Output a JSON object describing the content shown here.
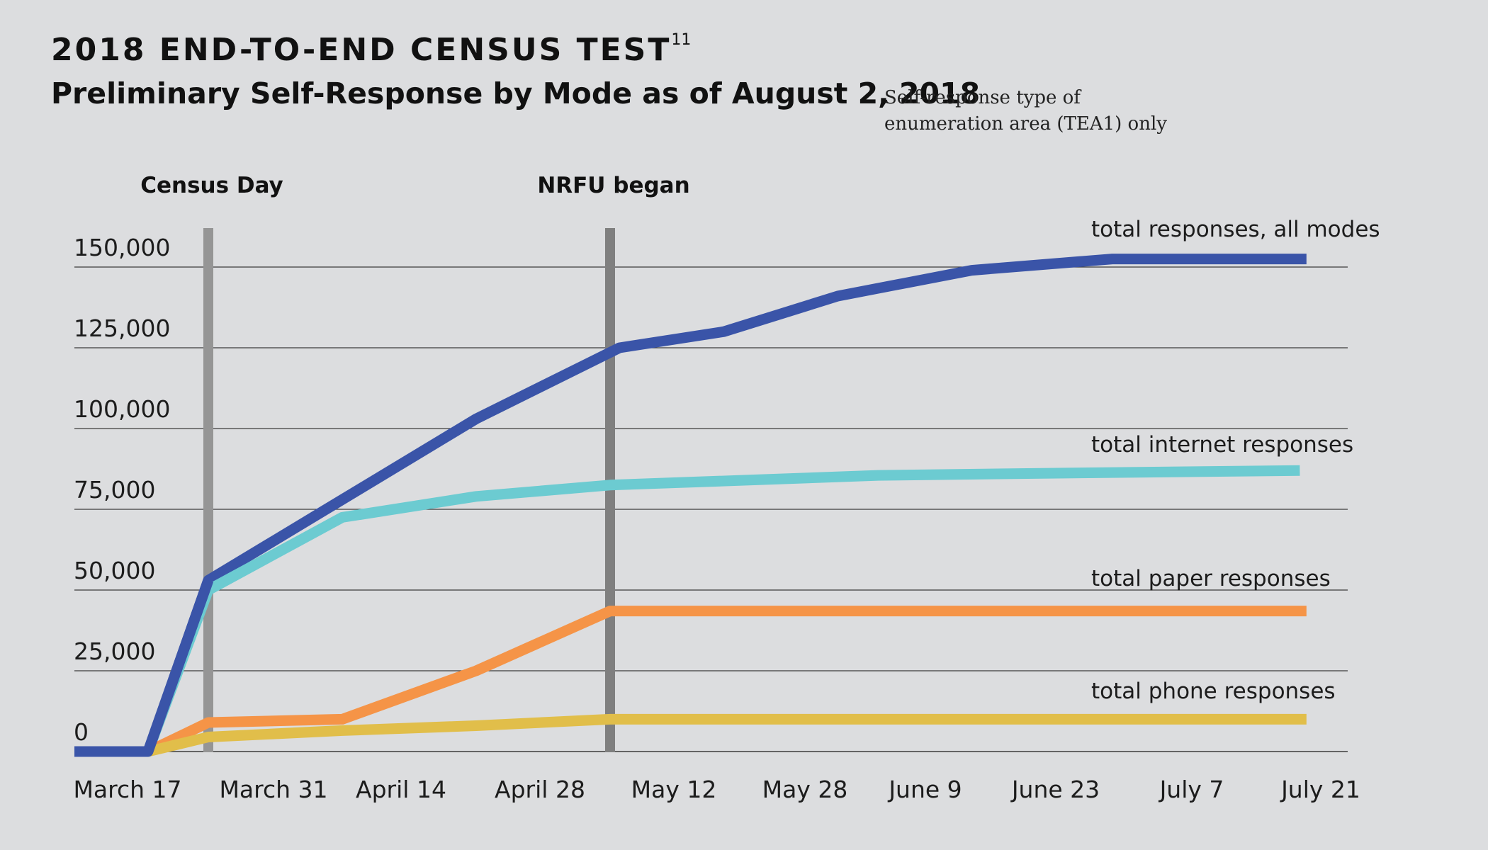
{
  "header": {
    "title": "2018 END-TO-END CENSUS TEST",
    "title_footnote": "11",
    "subtitle": "Preliminary Self-Response by Mode as of August 2, 2018",
    "note_line1": "Self-response type of",
    "note_line2": "enumeration area (TEA1) only"
  },
  "chart_data": {
    "type": "line",
    "categories": [
      "March 17",
      "March 31",
      "April 14",
      "April 28",
      "May 12",
      "May 28",
      "June 9",
      "June 23",
      "July 7",
      "July 21"
    ],
    "ylim": [
      0,
      150000
    ],
    "yticks": [
      0,
      25000,
      50000,
      75000,
      100000,
      125000,
      150000
    ],
    "ytick_labels": [
      "0",
      "25,000",
      "50,000",
      "75,000",
      "100,000",
      "125,000",
      "150,000"
    ],
    "grid": true,
    "markers": [
      {
        "label": "Census Day",
        "x": 1.0
      },
      {
        "label": "NRFU began",
        "x": 4.0
      }
    ],
    "series": [
      {
        "name": "total responses, all modes",
        "color": "#3a54a8",
        "points": [
          [
            0,
            0
          ],
          [
            0.55,
            0
          ],
          [
            1.0,
            53000
          ],
          [
            2.0,
            78000
          ],
          [
            3.0,
            103000
          ],
          [
            4.07,
            125000
          ],
          [
            4.85,
            130000
          ],
          [
            5.7,
            141000
          ],
          [
            6.7,
            149000
          ],
          [
            7.75,
            152500
          ],
          [
            9.2,
            152500
          ]
        ]
      },
      {
        "name": "total internet responses",
        "color": "#6ccbd1",
        "points": [
          [
            0,
            0
          ],
          [
            0.55,
            0
          ],
          [
            1.0,
            50000
          ],
          [
            2.0,
            72500
          ],
          [
            3.0,
            79000
          ],
          [
            4.0,
            82500
          ],
          [
            5.0,
            84000
          ],
          [
            6.0,
            85500
          ],
          [
            7.0,
            86000
          ],
          [
            8.0,
            86500
          ],
          [
            9.15,
            87000
          ]
        ]
      },
      {
        "name": "total paper responses",
        "color": "#f59447",
        "points": [
          [
            0.55,
            0
          ],
          [
            1.0,
            9000
          ],
          [
            2.0,
            10000
          ],
          [
            3.0,
            25000
          ],
          [
            4.0,
            43500
          ],
          [
            5.0,
            43500
          ],
          [
            6.0,
            43500
          ],
          [
            7.0,
            43500
          ],
          [
            8.0,
            43500
          ],
          [
            9.2,
            43500
          ]
        ]
      },
      {
        "name": "total phone responses",
        "color": "#e1be4a",
        "points": [
          [
            0.55,
            0
          ],
          [
            1.0,
            4500
          ],
          [
            2.0,
            6500
          ],
          [
            3.0,
            8000
          ],
          [
            4.0,
            10000
          ],
          [
            5.0,
            10000
          ],
          [
            6.0,
            10000
          ],
          [
            7.0,
            10000
          ],
          [
            8.0,
            10000
          ],
          [
            9.2,
            10000
          ]
        ]
      }
    ]
  }
}
